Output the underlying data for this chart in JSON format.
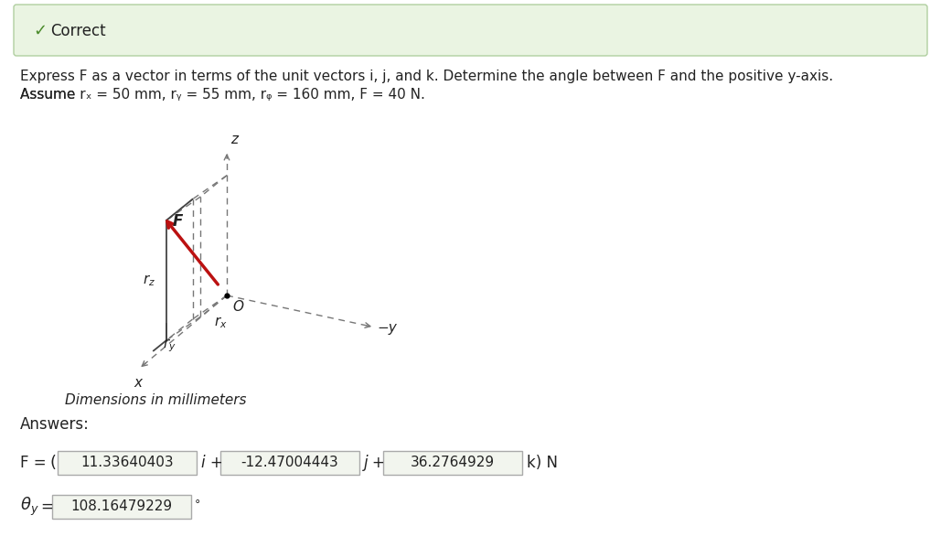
{
  "correct_banner_text": "Correct",
  "correct_banner_bg": "#eaf4e2",
  "correct_banner_border": "#b0cfa0",
  "correct_check_color": "#4a8a2a",
  "question_text_line1": "Express F as a vector in terms of the unit vectors i, j, and k. Determine the angle between F and the positive y-axis.",
  "question_text_line2": "Assume r_x = 50 mm, r_y = 55 mm, r_z = 160 mm, F = 40 N.",
  "diagram_label_dim": "Dimensions in millimeters",
  "answers_label": "Answers:",
  "F_label": "F =",
  "F_paren": "(",
  "F_val1": "11.33640403",
  "F_i": "i +",
  "F_val2": "-12.47004443",
  "F_j": "j +",
  "F_val3": "36.2764929",
  "F_k": "k) N",
  "theta_label": "theta_y =",
  "theta_val": "108.16479229",
  "theta_deg": "°",
  "bg_color": "#ffffff",
  "box_bg": "#f2f5ee",
  "box_border": "#aaaaaa",
  "axis_color": "#444444",
  "dashed_color": "#777777",
  "force_color": "#bb1111",
  "text_color": "#222222"
}
